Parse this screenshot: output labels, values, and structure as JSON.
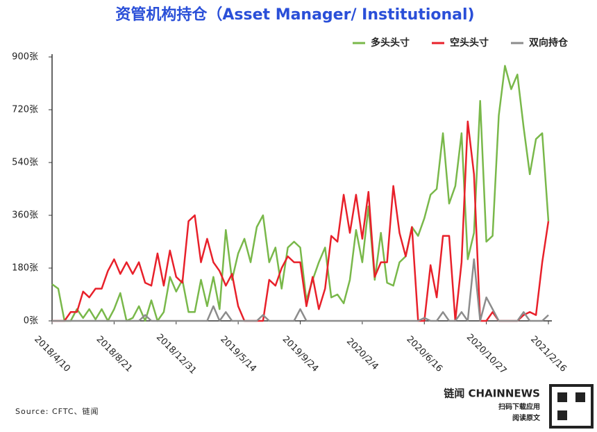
{
  "chart_data": {
    "type": "line",
    "title": "资管机构持仓（Asset Manager/ Institutional)",
    "categories": [
      "2018/4/10",
      null,
      null,
      null,
      null,
      null,
      null,
      null,
      null,
      null,
      "2018/8/21",
      null,
      null,
      null,
      null,
      null,
      null,
      null,
      null,
      null,
      "2018/12/31",
      null,
      null,
      null,
      null,
      null,
      null,
      null,
      null,
      null,
      "2019/5/14",
      null,
      null,
      null,
      null,
      null,
      null,
      null,
      null,
      null,
      "2019/9/24",
      null,
      null,
      null,
      null,
      null,
      null,
      null,
      null,
      null,
      "2020/2/4",
      null,
      null,
      null,
      null,
      null,
      null,
      null,
      null,
      null,
      "2020/6/16",
      null,
      null,
      null,
      null,
      null,
      null,
      null,
      null,
      null,
      "2020/10/27",
      null,
      null,
      null,
      null,
      null,
      null,
      null,
      null,
      null,
      "2021/2/16"
    ],
    "series": [
      {
        "name": "多头头寸",
        "color": "#79b84a",
        "values": [
          125,
          110,
          0,
          0,
          40,
          10,
          40,
          5,
          40,
          0,
          40,
          95,
          0,
          10,
          50,
          0,
          70,
          0,
          30,
          150,
          100,
          140,
          30,
          30,
          140,
          50,
          150,
          40,
          310,
          140,
          230,
          280,
          200,
          320,
          360,
          200,
          250,
          110,
          250,
          270,
          250,
          70,
          140,
          200,
          250,
          80,
          90,
          60,
          140,
          310,
          200,
          390,
          140,
          300,
          130,
          120,
          200,
          220,
          320,
          290,
          350,
          430,
          450,
          640,
          400,
          460,
          640,
          210,
          300,
          750,
          270,
          290,
          700,
          870,
          790,
          840,
          660,
          500,
          620,
          640,
          340
        ]
      },
      {
        "name": "空头头寸",
        "color": "#e8202a",
        "values": [
          0,
          0,
          0,
          30,
          30,
          100,
          80,
          110,
          110,
          170,
          210,
          160,
          200,
          160,
          200,
          130,
          120,
          230,
          120,
          240,
          150,
          130,
          340,
          360,
          200,
          280,
          200,
          170,
          120,
          160,
          50,
          0,
          0,
          0,
          0,
          140,
          120,
          180,
          220,
          200,
          200,
          50,
          150,
          40,
          110,
          290,
          270,
          430,
          300,
          430,
          280,
          440,
          150,
          200,
          200,
          460,
          300,
          220,
          320,
          0,
          0,
          190,
          80,
          290,
          290,
          0,
          200,
          680,
          500,
          0,
          0,
          30,
          0,
          0,
          0,
          0,
          20,
          30,
          20,
          200,
          340
        ]
      },
      {
        "name": "双向持仓",
        "color": "#8c8c8c",
        "values": [
          0,
          0,
          0,
          0,
          0,
          0,
          0,
          0,
          0,
          0,
          0,
          0,
          0,
          0,
          0,
          20,
          0,
          0,
          0,
          0,
          0,
          0,
          0,
          0,
          0,
          0,
          50,
          0,
          30,
          0,
          0,
          0,
          0,
          0,
          20,
          0,
          0,
          0,
          0,
          0,
          40,
          0,
          0,
          0,
          0,
          0,
          0,
          0,
          0,
          0,
          0,
          0,
          0,
          0,
          0,
          0,
          0,
          0,
          0,
          0,
          10,
          0,
          0,
          30,
          0,
          0,
          30,
          0,
          210,
          0,
          80,
          40,
          0,
          0,
          0,
          0,
          30,
          0,
          0,
          0,
          20
        ]
      }
    ],
    "ylim": [
      0,
      900
    ],
    "yticks": [
      {
        "value": 0,
        "label": "0张"
      },
      {
        "value": 180,
        "label": "180张"
      },
      {
        "value": 360,
        "label": "360张"
      },
      {
        "value": 540,
        "label": "540张"
      },
      {
        "value": 720,
        "label": "720张"
      },
      {
        "value": 900,
        "label": "900张"
      }
    ],
    "legend": "top-right",
    "source": "Source: CFTC、链闻",
    "brand": "链闻 CHAINNEWS",
    "brand_line1": "扫码下载应用",
    "brand_line2": "阅读原文"
  }
}
